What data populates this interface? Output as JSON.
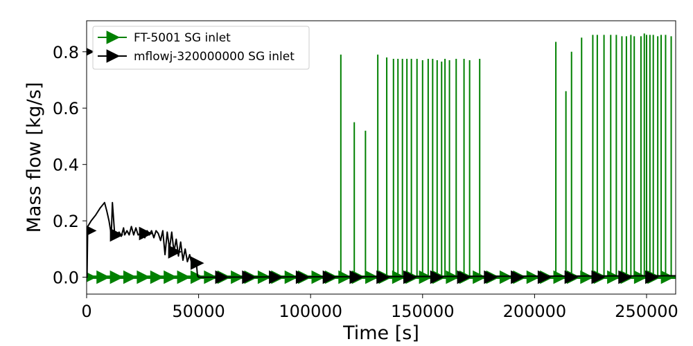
{
  "chart_data": {
    "type": "line",
    "title": "",
    "xlabel": "Time [s]",
    "ylabel": "Mass flow [kg/s]",
    "xlim": [
      0,
      263000
    ],
    "ylim": [
      -0.06,
      0.91
    ],
    "xticks": [
      0,
      50000,
      100000,
      150000,
      200000,
      250000
    ],
    "xtick_labels": [
      "0",
      "50000",
      "100000",
      "150000",
      "200000",
      "250000"
    ],
    "yticks": [
      0.0,
      0.2,
      0.4,
      0.6,
      0.8
    ],
    "ytick_labels": [
      "0.0",
      "0.2",
      "0.4",
      "0.6",
      "0.8"
    ],
    "grid": false,
    "legend": "upper-left",
    "series": [
      {
        "name": "FT-5001 SG inlet",
        "color": "#008000",
        "marker": "triangle-right",
        "baseline": 0.0,
        "spikes": [
          [
            113500,
            0.79
          ],
          [
            119500,
            0.55
          ],
          [
            124500,
            0.52
          ],
          [
            130000,
            0.79
          ],
          [
            134000,
            0.78
          ],
          [
            137000,
            0.775
          ],
          [
            139000,
            0.775
          ],
          [
            141000,
            0.775
          ],
          [
            143000,
            0.775
          ],
          [
            145000,
            0.775
          ],
          [
            147500,
            0.775
          ],
          [
            150000,
            0.77
          ],
          [
            152500,
            0.775
          ],
          [
            154500,
            0.775
          ],
          [
            156500,
            0.77
          ],
          [
            158500,
            0.765
          ],
          [
            160000,
            0.775
          ],
          [
            162000,
            0.77
          ],
          [
            165000,
            0.775
          ],
          [
            168500,
            0.775
          ],
          [
            171000,
            0.77
          ],
          [
            175500,
            0.775
          ],
          [
            209500,
            0.835
          ],
          [
            214000,
            0.66
          ],
          [
            216500,
            0.8
          ],
          [
            221000,
            0.85
          ],
          [
            226000,
            0.86
          ],
          [
            228000,
            0.86
          ],
          [
            231000,
            0.86
          ],
          [
            234000,
            0.86
          ],
          [
            236500,
            0.86
          ],
          [
            239000,
            0.855
          ],
          [
            241000,
            0.855
          ],
          [
            243000,
            0.86
          ],
          [
            244500,
            0.855
          ],
          [
            247500,
            0.855
          ],
          [
            249000,
            0.865
          ],
          [
            250000,
            0.86
          ],
          [
            251500,
            0.86
          ],
          [
            253000,
            0.86
          ],
          [
            255000,
            0.855
          ],
          [
            256500,
            0.86
          ],
          [
            258500,
            0.86
          ],
          [
            261000,
            0.855
          ]
        ]
      },
      {
        "name": "mflowj-320000000 SG inlet",
        "color": "#000000",
        "marker": "triangle-right",
        "points": [
          [
            0,
            0.0
          ],
          [
            200,
            0.0
          ],
          [
            500,
            0.18
          ],
          [
            2000,
            0.2
          ],
          [
            4000,
            0.22
          ],
          [
            6000,
            0.245
          ],
          [
            8000,
            0.265
          ],
          [
            9000,
            0.235
          ],
          [
            10000,
            0.2
          ],
          [
            11000,
            0.15
          ],
          [
            11500,
            0.265
          ],
          [
            12500,
            0.155
          ],
          [
            13500,
            0.15
          ],
          [
            14500,
            0.16
          ],
          [
            15500,
            0.145
          ],
          [
            16500,
            0.175
          ],
          [
            17000,
            0.15
          ],
          [
            18000,
            0.165
          ],
          [
            19000,
            0.15
          ],
          [
            20000,
            0.18
          ],
          [
            21000,
            0.15
          ],
          [
            22000,
            0.175
          ],
          [
            23000,
            0.15
          ],
          [
            24000,
            0.155
          ],
          [
            25000,
            0.16
          ],
          [
            26000,
            0.14
          ],
          [
            27000,
            0.165
          ],
          [
            28000,
            0.15
          ],
          [
            29000,
            0.165
          ],
          [
            30000,
            0.14
          ],
          [
            31000,
            0.165
          ],
          [
            32000,
            0.155
          ],
          [
            33000,
            0.13
          ],
          [
            34000,
            0.165
          ],
          [
            35000,
            0.08
          ],
          [
            36000,
            0.16
          ],
          [
            37000,
            0.1
          ],
          [
            38000,
            0.16
          ],
          [
            39000,
            0.09
          ],
          [
            40000,
            0.135
          ],
          [
            41000,
            0.075
          ],
          [
            42000,
            0.125
          ],
          [
            43000,
            0.06
          ],
          [
            44000,
            0.1
          ],
          [
            45000,
            0.055
          ],
          [
            46000,
            0.08
          ],
          [
            47000,
            0.045
          ],
          [
            48000,
            0.06
          ],
          [
            49000,
            0.05
          ],
          [
            49500,
            0.005
          ],
          [
            50000,
            0.0
          ],
          [
            263000,
            0.005
          ]
        ]
      }
    ]
  }
}
